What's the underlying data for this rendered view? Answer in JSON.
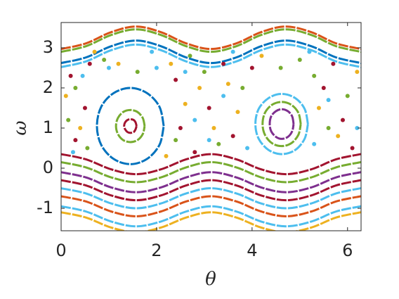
{
  "chart_data": {
    "type": "scatter",
    "xlabel": "θ",
    "ylabel": "ω",
    "xlim": [
      0,
      6.2832
    ],
    "ylim": [
      -1.56,
      3.63
    ],
    "xticks": [
      0,
      2,
      4,
      6
    ],
    "yticks": [
      -1,
      0,
      1,
      2,
      3
    ],
    "series": [
      {
        "mode": "line",
        "color": "#D95319",
        "x": [
          0,
          0.52,
          1.05,
          1.57,
          2.09,
          2.62,
          3.14,
          3.67,
          4.19,
          4.71,
          5.24,
          5.76,
          6.28
        ],
        "y": [
          2.97,
          3.11,
          3.39,
          3.53,
          3.39,
          3.11,
          2.97,
          3.11,
          3.39,
          3.53,
          3.39,
          3.11,
          2.97
        ]
      },
      {
        "mode": "line",
        "color": "#77AC30",
        "x": [
          0,
          0.52,
          1.05,
          1.57,
          2.09,
          2.62,
          3.14,
          3.67,
          4.19,
          4.71,
          5.24,
          5.76,
          6.28
        ],
        "y": [
          2.9,
          3.04,
          3.32,
          3.46,
          3.32,
          3.04,
          2.9,
          3.04,
          3.32,
          3.46,
          3.32,
          3.04,
          2.9
        ]
      },
      {
        "mode": "line",
        "color": "#0072BD",
        "x": [
          0,
          0.52,
          1.05,
          1.57,
          2.09,
          2.62,
          3.14,
          3.67,
          4.19,
          4.71,
          5.24,
          5.76,
          6.28
        ],
        "y": [
          2.62,
          2.76,
          3.04,
          3.18,
          3.04,
          2.76,
          2.62,
          2.76,
          3.04,
          3.18,
          3.04,
          2.76,
          2.62
        ]
      },
      {
        "mode": "line",
        "color": "#4DBEEE",
        "x": [
          0,
          0.52,
          1.05,
          1.57,
          2.09,
          2.62,
          3.14,
          3.67,
          4.19,
          4.71,
          5.24,
          5.76,
          6.28
        ],
        "y": [
          2.52,
          2.66,
          2.94,
          3.08,
          2.94,
          2.66,
          2.52,
          2.66,
          2.94,
          3.08,
          2.94,
          2.66,
          2.52
        ]
      },
      {
        "mode": "line",
        "color": "#A2142F",
        "x": [
          0,
          0.52,
          1.05,
          1.57,
          2.09,
          2.62,
          3.14,
          3.67,
          4.19,
          4.71,
          5.24,
          5.76,
          6.28
        ],
        "y": [
          0.35,
          0.22,
          -0.03,
          -0.15,
          -0.03,
          0.22,
          0.35,
          0.22,
          -0.03,
          -0.15,
          -0.03,
          0.22,
          0.35
        ]
      },
      {
        "mode": "line",
        "color": "#77AC30",
        "x": [
          0,
          0.52,
          1.05,
          1.57,
          2.09,
          2.62,
          3.14,
          3.67,
          4.19,
          4.71,
          5.24,
          5.76,
          6.28
        ],
        "y": [
          0.15,
          0.02,
          -0.23,
          -0.35,
          -0.23,
          0.02,
          0.15,
          0.02,
          -0.23,
          -0.35,
          -0.23,
          0.02,
          0.15
        ]
      },
      {
        "mode": "line",
        "color": "#7E2F8E",
        "x": [
          0,
          0.52,
          1.05,
          1.57,
          2.09,
          2.62,
          3.14,
          3.67,
          4.19,
          4.71,
          5.24,
          5.76,
          6.28
        ],
        "y": [
          -0.1,
          -0.23,
          -0.48,
          -0.6,
          -0.48,
          -0.23,
          -0.1,
          -0.23,
          -0.48,
          -0.6,
          -0.48,
          -0.23,
          -0.1
        ]
      },
      {
        "mode": "line",
        "color": "#A2142F",
        "x": [
          0,
          0.52,
          1.05,
          1.57,
          2.09,
          2.62,
          3.14,
          3.67,
          4.19,
          4.71,
          5.24,
          5.76,
          6.28
        ],
        "y": [
          -0.3,
          -0.43,
          -0.68,
          -0.8,
          -0.68,
          -0.43,
          -0.3,
          -0.43,
          -0.68,
          -0.8,
          -0.68,
          -0.43,
          -0.3
        ]
      },
      {
        "mode": "line",
        "color": "#4DBEEE",
        "x": [
          0,
          0.52,
          1.05,
          1.57,
          2.09,
          2.62,
          3.14,
          3.67,
          4.19,
          4.71,
          5.24,
          5.76,
          6.28
        ],
        "y": [
          -0.5,
          -0.63,
          -0.88,
          -1.0,
          -0.88,
          -0.63,
          -0.5,
          -0.63,
          -0.88,
          -1.0,
          -0.88,
          -0.63,
          -0.5
        ]
      },
      {
        "mode": "line",
        "color": "#D95319",
        "x": [
          0,
          0.52,
          1.05,
          1.57,
          2.09,
          2.62,
          3.14,
          3.67,
          4.19,
          4.71,
          5.24,
          5.76,
          6.28
        ],
        "y": [
          -0.7,
          -0.83,
          -1.08,
          -1.2,
          -1.08,
          -0.83,
          -0.7,
          -0.83,
          -1.08,
          -1.2,
          -1.08,
          -0.83,
          -0.7
        ]
      },
      {
        "mode": "line",
        "color": "#4DBEEE",
        "x": [
          0,
          0.52,
          1.05,
          1.57,
          2.09,
          2.62,
          3.14,
          3.67,
          4.19,
          4.71,
          5.24,
          5.76,
          6.28
        ],
        "y": [
          -0.95,
          -1.08,
          -1.33,
          -1.45,
          -1.33,
          -1.08,
          -0.95,
          -1.08,
          -1.33,
          -1.45,
          -1.33,
          -1.08,
          -0.95
        ]
      },
      {
        "mode": "line",
        "color": "#EDB120",
        "x": [
          0,
          0.52,
          1.05,
          1.57,
          2.09,
          2.62,
          3.14,
          3.67,
          4.19,
          4.71,
          5.24,
          5.76,
          6.28
        ],
        "y": [
          -1.1,
          -1.23,
          -1.48,
          -1.6,
          -1.48,
          -1.23,
          -1.1,
          -1.23,
          -1.48,
          -1.6,
          -1.48,
          -1.23,
          -1.1
        ]
      },
      {
        "mode": "line",
        "color": "#A2142F",
        "x": [
          1.58,
          1.56,
          1.52,
          1.45,
          1.39,
          1.34,
          1.32,
          1.34,
          1.39,
          1.45,
          1.52,
          1.56,
          1.58
        ],
        "y": [
          1.05,
          1.14,
          1.2,
          1.22,
          1.2,
          1.14,
          1.05,
          0.97,
          0.9,
          0.88,
          0.9,
          0.97,
          1.05
        ]
      },
      {
        "mode": "line",
        "color": "#77AC30",
        "x": [
          1.75,
          1.71,
          1.6,
          1.45,
          1.3,
          1.19,
          1.15,
          1.19,
          1.3,
          1.45,
          1.6,
          1.71,
          1.75
        ],
        "y": [
          1.05,
          1.25,
          1.4,
          1.45,
          1.4,
          1.25,
          1.05,
          0.85,
          0.7,
          0.65,
          0.7,
          0.85,
          1.05
        ]
      },
      {
        "mode": "line",
        "color": "#0072BD",
        "x": [
          2.15,
          2.06,
          1.8,
          1.45,
          1.1,
          0.84,
          0.75,
          0.84,
          1.1,
          1.45,
          1.8,
          2.06,
          2.15
        ],
        "y": [
          1.05,
          1.53,
          1.87,
          2.0,
          1.87,
          1.53,
          1.05,
          0.58,
          0.23,
          0.1,
          0.23,
          0.58,
          1.05
        ]
      },
      {
        "mode": "line",
        "color": "#7E2F8E",
        "x": [
          4.87,
          4.84,
          4.75,
          4.62,
          4.5,
          4.4,
          4.37,
          4.4,
          4.5,
          4.62,
          4.75,
          4.84,
          4.87
        ],
        "y": [
          1.1,
          1.29,
          1.42,
          1.47,
          1.42,
          1.29,
          1.1,
          0.92,
          0.78,
          0.73,
          0.78,
          0.92,
          1.1
        ]
      },
      {
        "mode": "line",
        "color": "#77AC30",
        "x": [
          5.02,
          4.97,
          4.82,
          4.62,
          4.42,
          4.27,
          4.22,
          4.27,
          4.42,
          4.62,
          4.82,
          4.97,
          5.02
        ],
        "y": [
          1.1,
          1.38,
          1.58,
          1.65,
          1.58,
          1.38,
          1.1,
          0.83,
          0.62,
          0.55,
          0.62,
          0.83,
          1.1
        ]
      },
      {
        "mode": "line",
        "color": "#4DBEEE",
        "x": [
          5.17,
          5.1,
          4.9,
          4.62,
          4.35,
          4.14,
          4.07,
          4.14,
          4.35,
          4.62,
          4.9,
          5.1,
          5.17
        ],
        "y": [
          1.1,
          1.48,
          1.75,
          1.85,
          1.75,
          1.48,
          1.1,
          0.73,
          0.45,
          0.35,
          0.45,
          0.73,
          1.1
        ]
      },
      {
        "mode": "markers",
        "color": "#A2142F",
        "x": [
          0.2,
          0.5,
          0.3,
          0.6,
          2.4,
          2.5,
          2.8,
          3.1,
          3.4,
          3.6,
          5.5,
          5.9,
          6.1,
          5.7,
          4.0
        ],
        "y": [
          2.3,
          1.5,
          0.7,
          2.6,
          2.2,
          1.0,
          0.4,
          1.5,
          2.6,
          0.8,
          2.0,
          1.2,
          0.5,
          2.6,
          2.5
        ]
      },
      {
        "mode": "markers",
        "color": "#EDB120",
        "x": [
          0.1,
          0.4,
          0.7,
          2.3,
          2.6,
          2.9,
          3.2,
          3.5,
          3.7,
          2.2,
          5.4,
          5.8,
          6.2,
          4.2,
          1.2
        ],
        "y": [
          1.8,
          1.0,
          2.9,
          2.6,
          1.6,
          2.0,
          1.0,
          2.1,
          1.4,
          0.3,
          1.5,
          0.8,
          2.4,
          2.8,
          2.6
        ]
      },
      {
        "mode": "markers",
        "color": "#77AC30",
        "x": [
          0.3,
          0.15,
          0.55,
          1.6,
          2.7,
          2.4,
          3.0,
          3.3,
          3.8,
          5.3,
          5.6,
          6.0,
          4.6,
          5.0,
          0.9
        ],
        "y": [
          2.0,
          1.2,
          0.5,
          2.4,
          2.8,
          0.7,
          2.4,
          0.6,
          2.0,
          2.3,
          1.0,
          1.8,
          2.5,
          2.7,
          2.7
        ]
      },
      {
        "mode": "markers",
        "color": "#4DBEEE",
        "x": [
          0.45,
          0.25,
          1.0,
          2.0,
          2.6,
          2.8,
          3.1,
          3.4,
          3.6,
          3.9,
          5.3,
          5.6,
          6.2,
          5.2,
          1.9
        ],
        "y": [
          2.3,
          0.4,
          2.5,
          2.5,
          2.4,
          1.2,
          0.7,
          1.8,
          2.9,
          0.5,
          0.6,
          1.7,
          1.0,
          2.9,
          2.9
        ]
      }
    ]
  }
}
